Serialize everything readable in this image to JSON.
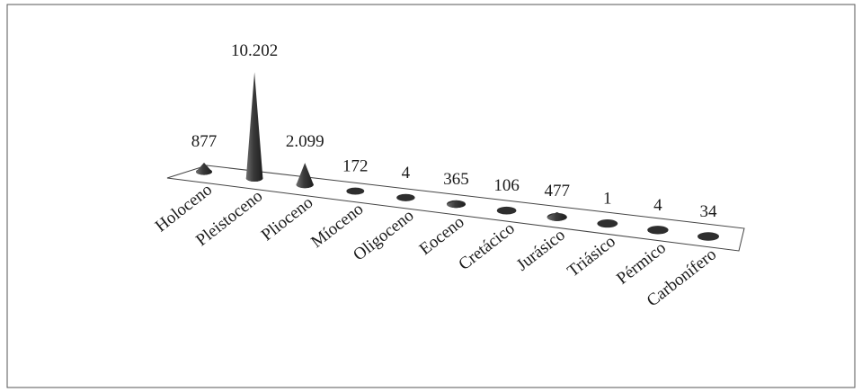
{
  "chart_data": {
    "type": "bar",
    "style": "3d-cone",
    "title": "",
    "xlabel": "",
    "ylabel": "",
    "categories": [
      "Holoceno",
      "Pleistoceno",
      "Plioceno",
      "Míoceno",
      "Oligoceno",
      "Eoceno",
      "Cretácico",
      "Jurásico",
      "Triásico",
      "Pérmico",
      "Carbonífero"
    ],
    "values": [
      877,
      10202,
      2099,
      172,
      4,
      365,
      106,
      477,
      1,
      4,
      34
    ],
    "value_labels": [
      "877",
      "10.202",
      "2.099",
      "172",
      "4",
      "365",
      "106",
      "477",
      "1",
      "4",
      "34"
    ],
    "ylim": [
      0,
      10202
    ],
    "grid": false,
    "legend": "none",
    "colors": {
      "cone_dark": "#2b2b2b",
      "cone_light": "#6e6e6e",
      "floor": "#ffffff",
      "border": "#555555"
    }
  }
}
